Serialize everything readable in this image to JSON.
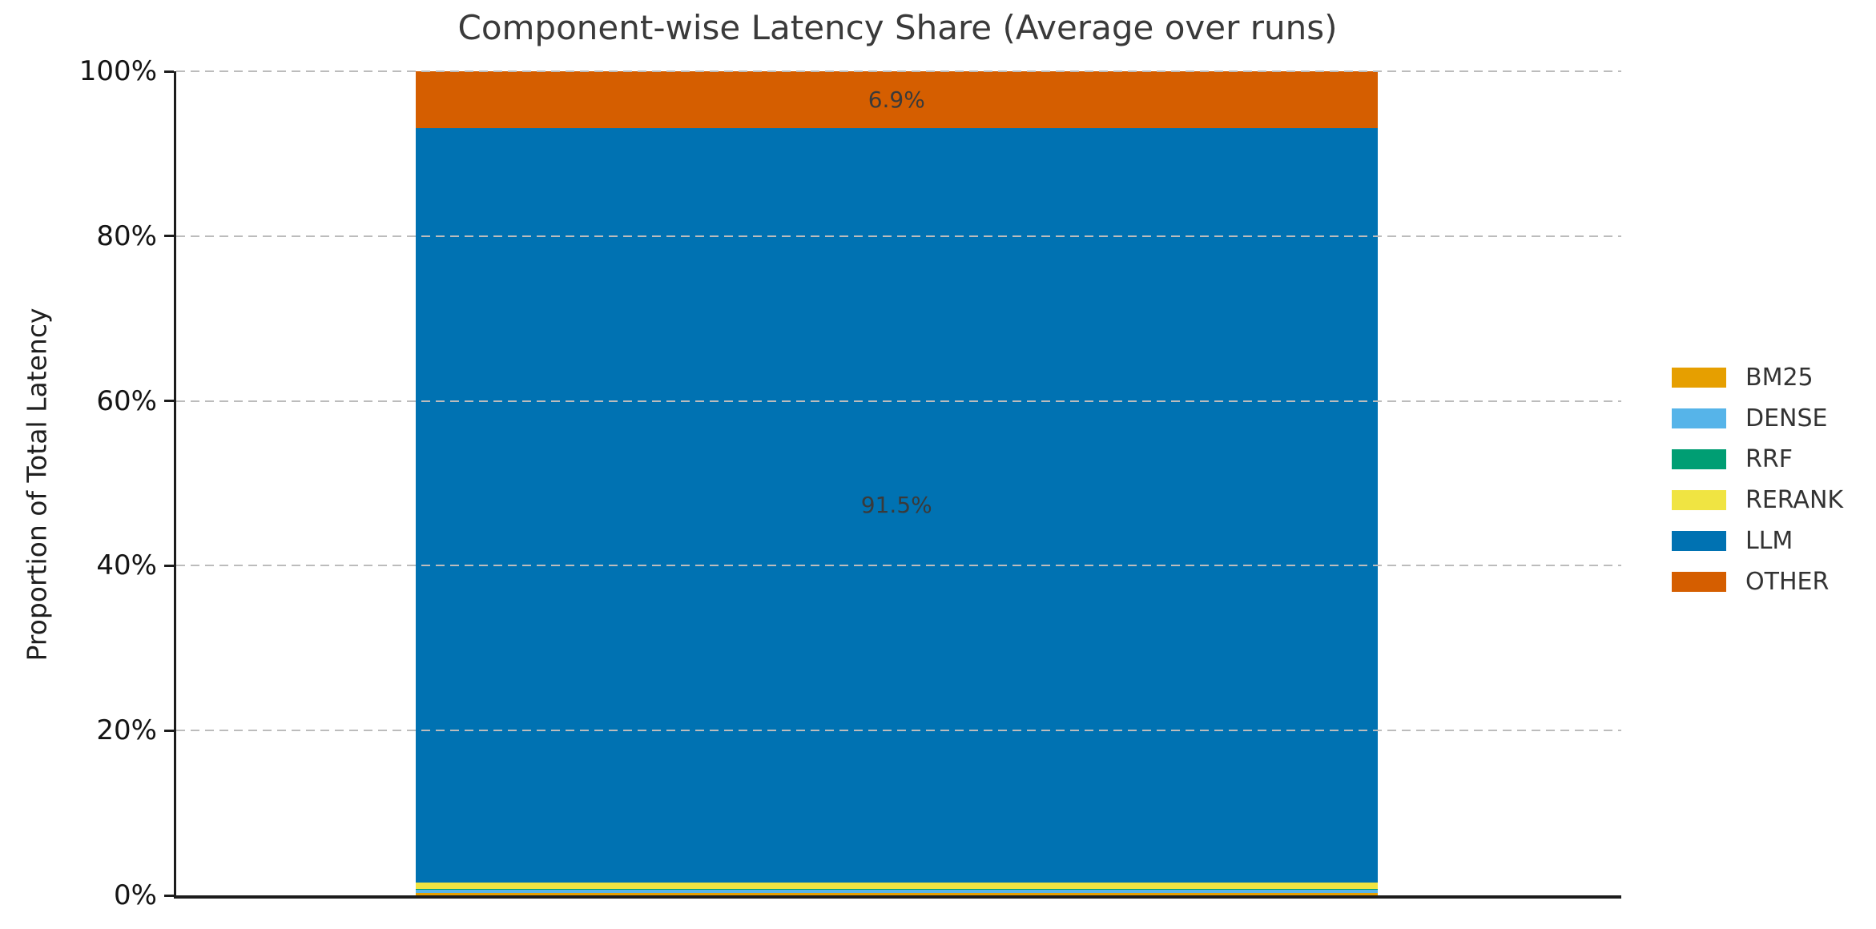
{
  "chart_data": {
    "type": "bar",
    "stacked": true,
    "orientation": "vertical",
    "title": "Component-wise Latency Share (Average over runs)",
    "xlabel": "",
    "ylabel": "Proportion of Total Latency",
    "categories": [
      ""
    ],
    "series": [
      {
        "name": "BM25",
        "color": "#E69F00",
        "value": 0.3,
        "label": ""
      },
      {
        "name": "DENSE",
        "color": "#56B4E9",
        "value": 0.45,
        "label": ""
      },
      {
        "name": "RRF",
        "color": "#009E73",
        "value": 0.03,
        "label": ""
      },
      {
        "name": "RERANK",
        "color": "#F0E442",
        "value": 0.82,
        "label": ""
      },
      {
        "name": "LLM",
        "color": "#0072B2",
        "value": 91.5,
        "label": "91.5%"
      },
      {
        "name": "OTHER",
        "color": "#D55E00",
        "value": 6.9,
        "label": "6.9%"
      }
    ],
    "ylim": [
      0,
      100
    ],
    "yticks": [
      {
        "value": 0,
        "label": "0%"
      },
      {
        "value": 20,
        "label": "20%"
      },
      {
        "value": 40,
        "label": "40%"
      },
      {
        "value": 60,
        "label": "60%"
      },
      {
        "value": 80,
        "label": "80%"
      },
      {
        "value": 100,
        "label": "100%"
      }
    ],
    "grid": "horizontal dashed gray, drawn above bars",
    "legend_position": "center-right outside plot, no frame",
    "legend_entries": [
      "BM25",
      "DENSE",
      "RRF",
      "RERANK",
      "LLM",
      "OTHER"
    ]
  },
  "colors": {
    "background": "#ffffff",
    "spine": "#1c1c1c",
    "gridline": "#bcbcbc",
    "title_text": "#3a3a3a",
    "tick_text": "#141414",
    "bar_label_text": "#3a3a3a",
    "legend_text": "#333333"
  }
}
